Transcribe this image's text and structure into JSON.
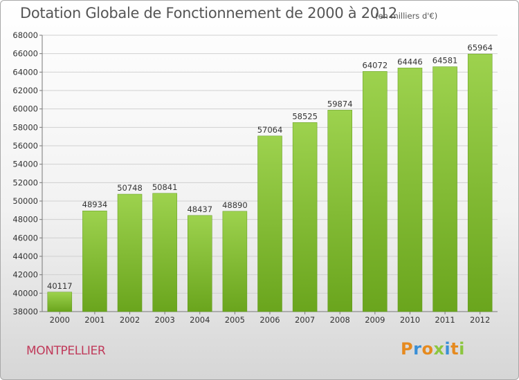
{
  "chart_data": {
    "type": "bar",
    "title": "Dotation Globale de Fonctionnement de 2000 à 2012",
    "subtitle": "(en milliers d'€)",
    "categories": [
      "2000",
      "2001",
      "2002",
      "2003",
      "2004",
      "2005",
      "2006",
      "2007",
      "2008",
      "2009",
      "2010",
      "2011",
      "2012"
    ],
    "values": [
      40117,
      48934,
      50748,
      50841,
      48437,
      48890,
      57064,
      58525,
      59874,
      64072,
      64446,
      64581,
      65964
    ],
    "ylim": [
      38000,
      68000
    ],
    "yticks": [
      38000,
      40000,
      42000,
      44000,
      46000,
      48000,
      50000,
      52000,
      54000,
      56000,
      58000,
      60000,
      62000,
      64000,
      66000,
      68000
    ],
    "grid": true,
    "colors": {
      "bar_light": "#9dd24e",
      "bar_dark": "#6aa51d",
      "grid": "#d0d0d0"
    }
  },
  "footer": {
    "city": "MONTPELLIER",
    "logo": "Proxiti"
  }
}
